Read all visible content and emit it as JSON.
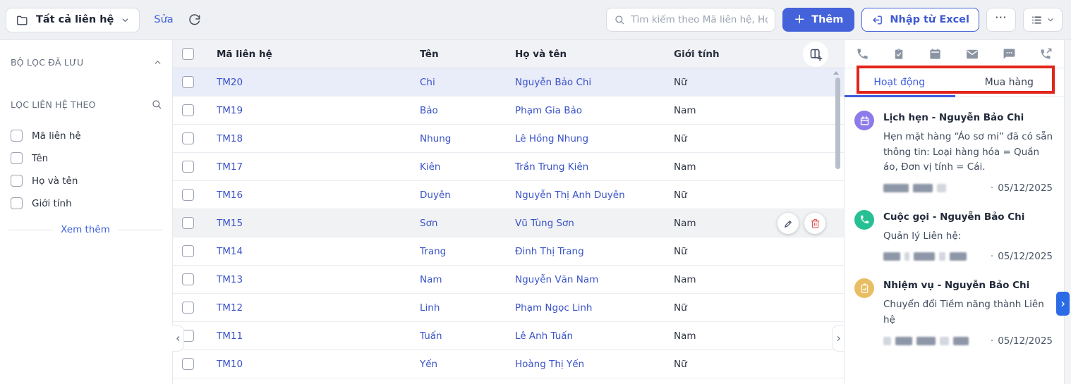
{
  "toolbar": {
    "view_selector": "Tất cả liên hệ",
    "edit_link": "Sửa",
    "search_placeholder": "Tìm kiếm theo Mã liên hệ, Họ ...",
    "add_button": "Thêm",
    "import_button": "Nhập từ Excel",
    "more_button": "⋯"
  },
  "sidebar": {
    "saved_filters_title": "BỘ LỌC ĐÃ LƯU",
    "filter_by_title": "LỌC LIÊN HỆ THEO",
    "filters": [
      "Mã liên hệ",
      "Tên",
      "Họ và tên",
      "Giới tính"
    ],
    "see_more": "Xem thêm"
  },
  "table": {
    "columns": [
      "Mã liên hệ",
      "Tên",
      "Họ và tên",
      "Giới tính"
    ],
    "rows": [
      {
        "code": "TM20",
        "ten": "Chi",
        "hoten": "Nguyễn Bảo Chi",
        "gioitinh": "Nữ",
        "state": "selected"
      },
      {
        "code": "TM19",
        "ten": "Bảo",
        "hoten": "Phạm Gia Bảo",
        "gioitinh": "Nam",
        "state": ""
      },
      {
        "code": "TM18",
        "ten": "Nhung",
        "hoten": "Lê Hồng Nhung",
        "gioitinh": "Nữ",
        "state": ""
      },
      {
        "code": "TM17",
        "ten": "Kiên",
        "hoten": "Trần Trung Kiên",
        "gioitinh": "Nam",
        "state": ""
      },
      {
        "code": "TM16",
        "ten": "Duyên",
        "hoten": "Nguyễn Thị Anh Duyên",
        "gioitinh": "Nữ",
        "state": ""
      },
      {
        "code": "TM15",
        "ten": "Sơn",
        "hoten": "Vũ Tùng Sơn",
        "gioitinh": "Nam",
        "state": "hover"
      },
      {
        "code": "TM14",
        "ten": "Trang",
        "hoten": "Đinh Thị Trang",
        "gioitinh": "Nữ",
        "state": ""
      },
      {
        "code": "TM13",
        "ten": "Nam",
        "hoten": "Nguyễn Văn Nam",
        "gioitinh": "Nam",
        "state": ""
      },
      {
        "code": "TM12",
        "ten": "Linh",
        "hoten": "Phạm Ngọc Linh",
        "gioitinh": "Nữ",
        "state": ""
      },
      {
        "code": "TM11",
        "ten": "Tuấn",
        "hoten": "Lê Anh Tuấn",
        "gioitinh": "Nam",
        "state": ""
      },
      {
        "code": "TM10",
        "ten": "Yến",
        "hoten": "Hoàng Thị Yến",
        "gioitinh": "Nữ",
        "state": ""
      }
    ]
  },
  "detail_panel": {
    "action_icons": [
      "phone-icon",
      "tasks-icon",
      "calendar-icon",
      "mail-icon",
      "chat-icon",
      "outgoing-call-icon"
    ],
    "tabs": [
      {
        "label": "Hoạt động",
        "active": true
      },
      {
        "label": "Mua hàng",
        "active": false
      }
    ],
    "activities": [
      {
        "type": "appointment",
        "title": "Lịch hẹn - Nguyễn Bảo Chi",
        "description": "Hẹn mặt hàng “Áo sơ mi” đã có sẵn thông tin: Loại hàng hóa = Quần áo, Đơn vị tính = Cái.",
        "date": "05/12/2025",
        "icon_color": "#8d7bea"
      },
      {
        "type": "call",
        "title": "Cuộc gọi - Nguyễn Bảo Chi",
        "description": "Quản lý Liên hệ:",
        "date": "05/12/2025",
        "icon_color": "#27bf94"
      },
      {
        "type": "task",
        "title": "Nhiệm vụ - Nguyễn Bảo Chi",
        "description": "Chuyển đổi Tiềm năng thành Liên hệ",
        "date": "05/12/2025",
        "icon_color": "#e9bd63"
      }
    ]
  },
  "colors": {
    "accent_blue": "#4462d9",
    "link_blue": "#3a53c8",
    "annotation_red": "#e3241b",
    "selected_row": "#e9ecf9",
    "topbar_bg": "#eef0f3"
  }
}
